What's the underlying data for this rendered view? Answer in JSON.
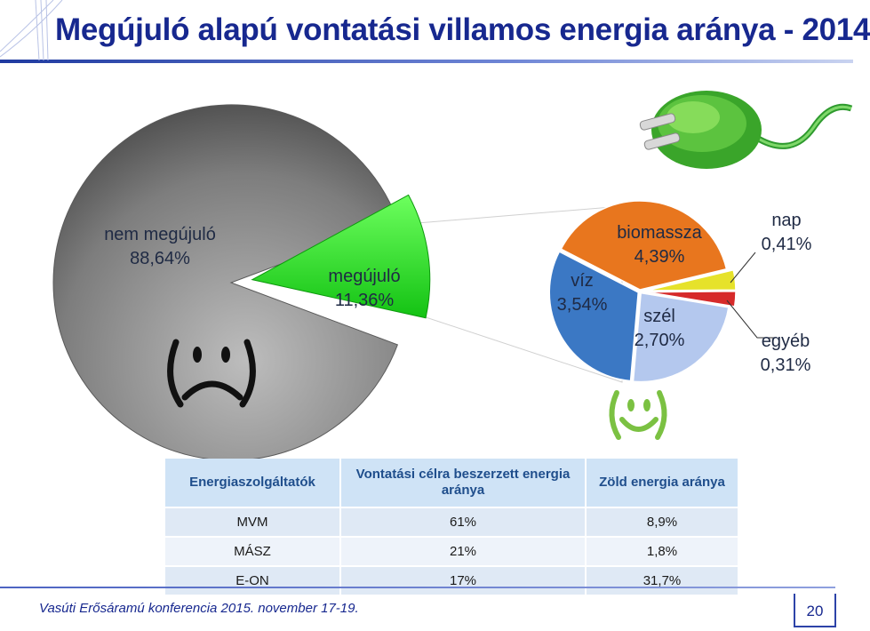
{
  "title": "Megújuló alapú vontatási villamos energia aránya - 2014",
  "chart_data": [
    {
      "type": "pie",
      "slices": [
        {
          "label": "nem megújuló",
          "value_text": "88,64%",
          "value": 88.64,
          "color": "#8a8a8a"
        },
        {
          "label": "megújuló",
          "value_text": "11,36%",
          "value": 11.36,
          "color": "#22e01e"
        }
      ]
    },
    {
      "type": "pie",
      "slices": [
        {
          "label": "víz",
          "value_text": "3,54%",
          "value": 3.54,
          "color": "#3b78c4"
        },
        {
          "label": "biomassza",
          "value_text": "4,39%",
          "value": 4.39,
          "color": "#e8761e"
        },
        {
          "label": "nap",
          "value_text": "0,41%",
          "value": 0.41,
          "color": "#e6e22a"
        },
        {
          "label": "egyéb",
          "value_text": "0,31%",
          "value": 0.31,
          "color": "#d62a2a"
        },
        {
          "label": "szél",
          "value_text": "2,70%",
          "value": 2.7,
          "color": "#b4c8ee"
        }
      ]
    }
  ],
  "table": {
    "headers": [
      "Energiaszolgáltatók",
      "Vontatási célra beszerzett energia aránya",
      "Zöld energia aránya"
    ],
    "rows": [
      [
        "MVM",
        "61%",
        "8,9%"
      ],
      [
        "MÁSZ",
        "21%",
        "1,8%"
      ],
      [
        "E-ON",
        "17%",
        "31,7%"
      ]
    ]
  },
  "footer": "Vasúti Erősáramú konferencia 2015. november 17-19.",
  "page_number": "20",
  "colors": {
    "title": "#17288f",
    "accent": "#2d43a8"
  }
}
